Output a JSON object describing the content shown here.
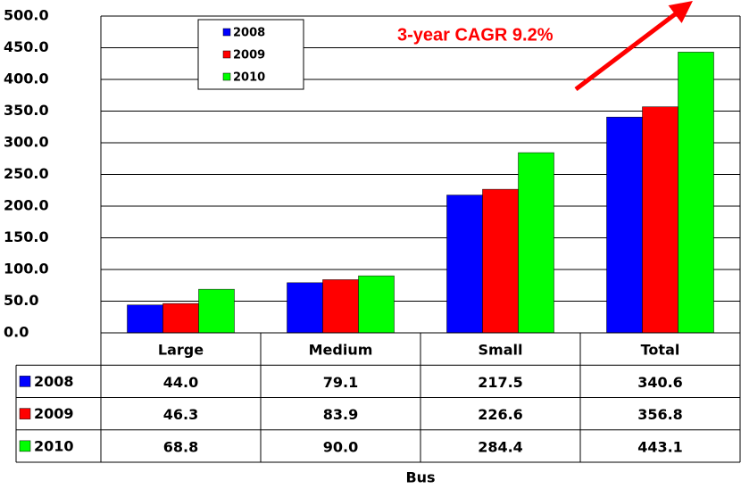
{
  "chart_data": {
    "type": "bar",
    "annotation": "3-year CAGR 9.2%",
    "x_label": "Bus",
    "categories": [
      "Large",
      "Medium",
      "Small",
      "Total"
    ],
    "series": [
      {
        "name": "2008",
        "color": "#0000ff",
        "values": [
          44.0,
          79.1,
          217.5,
          340.6
        ],
        "value_labels": [
          "44.0",
          "79.1",
          "217.5",
          "340.6"
        ]
      },
      {
        "name": "2009",
        "color": "#ff0000",
        "values": [
          46.3,
          83.9,
          226.6,
          356.8
        ],
        "value_labels": [
          "46.3",
          "83.9",
          "226.6",
          "356.8"
        ]
      },
      {
        "name": "2010",
        "color": "#00ff00",
        "values": [
          68.8,
          90.0,
          284.4,
          443.1
        ],
        "value_labels": [
          "68.8",
          "90.0",
          "284.4",
          "443.1"
        ]
      }
    ],
    "ylim": [
      0,
      500
    ],
    "yticks": [
      {
        "value": 0,
        "label": "0.0"
      },
      {
        "value": 50,
        "label": "50.0"
      },
      {
        "value": 100,
        "label": "100.0"
      },
      {
        "value": 150,
        "label": "150.0"
      },
      {
        "value": 200,
        "label": "200.0"
      },
      {
        "value": 250,
        "label": "250.0"
      },
      {
        "value": 300,
        "label": "300.0"
      },
      {
        "value": 350,
        "label": "350.0"
      },
      {
        "value": 400,
        "label": "400.0"
      },
      {
        "value": 450,
        "label": "450.0"
      },
      {
        "value": 500,
        "label": "500.0"
      }
    ],
    "grid": true
  }
}
